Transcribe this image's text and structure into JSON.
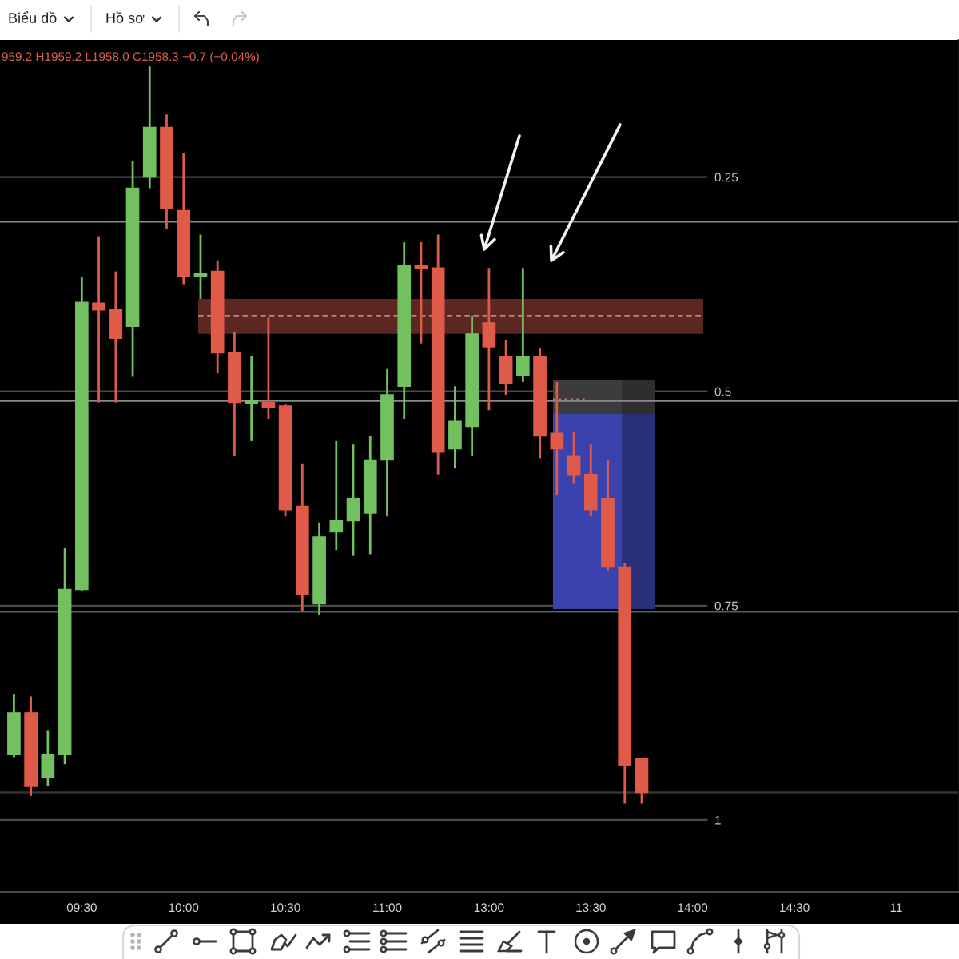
{
  "chart_data": {
    "type": "candlestick",
    "annotations": [
      "Biểu đồ",
      "Hồ sơ",
      "959.2 H1959.2 L1958.0 C1958.3 −0.7 (−0.04%)"
    ],
    "categories": [
      null,
      null,
      null,
      null,
      "09:30",
      null,
      null,
      null,
      null,
      null,
      "10:00",
      null,
      null,
      null,
      null,
      null,
      "10:30",
      null,
      null,
      null,
      null,
      null,
      "11:00",
      null,
      null,
      null,
      null,
      null,
      "13:00",
      null,
      null,
      null,
      null,
      null,
      "13:30",
      null,
      null,
      null,
      null,
      null,
      "14:00",
      null,
      null,
      null,
      null,
      null,
      "14:30",
      null,
      null,
      null,
      null,
      null,
      "11",
      null,
      null,
      null
    ],
    "ohlc": [
      [
        0.924,
        0.927,
        0.853,
        0.875
      ],
      [
        0.875,
        0.972,
        0.856,
        0.961
      ],
      [
        0.951,
        0.961,
        0.896,
        0.924
      ],
      [
        0.924,
        0.935,
        0.683,
        0.731
      ],
      [
        0.731,
        0.733,
        0.366,
        0.396
      ],
      [
        0.397,
        0.513,
        0.319,
        0.405
      ],
      [
        0.405,
        0.513,
        0.36,
        0.438
      ],
      [
        0.424,
        0.483,
        0.231,
        0.263
      ],
      [
        0.25,
        0.263,
        0.121,
        0.192
      ],
      [
        0.192,
        0.31,
        0.177,
        0.287
      ],
      [
        0.289,
        0.375,
        0.222,
        0.366
      ],
      [
        0.366,
        0.392,
        0.317,
        0.362
      ],
      [
        0.36,
        0.479,
        0.347,
        0.455
      ],
      [
        0.455,
        0.575,
        0.431,
        0.513
      ],
      [
        0.514,
        0.558,
        0.459,
        0.511
      ],
      [
        0.513,
        0.532,
        0.414,
        0.519
      ],
      [
        0.517,
        0.646,
        0.515,
        0.638
      ],
      [
        0.634,
        0.757,
        0.584,
        0.737
      ],
      [
        0.748,
        0.761,
        0.653,
        0.67
      ],
      [
        0.664,
        0.685,
        0.558,
        0.651
      ],
      [
        0.651,
        0.692,
        0.562,
        0.625
      ],
      [
        0.642,
        0.69,
        0.552,
        0.58
      ],
      [
        0.58,
        0.646,
        0.474,
        0.504
      ],
      [
        0.494,
        0.532,
        0.326,
        0.353
      ],
      [
        0.353,
        0.444,
        0.326,
        0.356
      ],
      [
        0.356,
        0.597,
        0.317,
        0.571
      ],
      [
        0.567,
        0.59,
        0.494,
        0.535
      ],
      [
        0.541,
        0.575,
        0.412,
        0.433
      ],
      [
        0.42,
        0.522,
        0.356,
        0.448
      ],
      [
        0.459,
        0.504,
        0.44,
        0.491
      ],
      [
        0.481,
        0.489,
        0.356,
        0.459
      ],
      [
        0.459,
        0.578,
        0.45,
        0.552
      ],
      [
        0.549,
        0.621,
        0.489,
        0.567
      ],
      [
        0.575,
        0.608,
        0.547,
        0.597
      ],
      [
        0.597,
        0.646,
        0.562,
        0.638
      ],
      [
        0.625,
        0.709,
        0.58,
        0.705
      ],
      [
        0.705,
        0.981,
        0.7,
        0.937
      ],
      [
        0.929,
        0.981,
        0.929,
        0.968
      ],
      null,
      null,
      null,
      null,
      null,
      null,
      null,
      null,
      null,
      null,
      null,
      null,
      null,
      null,
      null,
      null,
      null,
      null
    ],
    "colors": [
      "#72c05f",
      "#e05a4a",
      "#72c05f",
      "#72c05f",
      "#72c05f",
      "#e05a4a",
      "#e05a4a",
      "#72c05f",
      "#72c05f",
      "#e05a4a",
      "#e05a4a",
      "#72c05f",
      "#e05a4a",
      "#e05a4a",
      "#72c05f",
      "#e05a4a",
      "#e05a4a",
      "#e05a4a",
      "#72c05f",
      "#72c05f",
      "#72c05f",
      "#72c05f",
      "#72c05f",
      "#72c05f",
      "#e05a4a",
      "#e05a4a",
      "#72c05f",
      "#72c05f",
      "#e05a4a",
      "#e05a4a",
      "#72c05f",
      "#e05a4a",
      "#e05a4a",
      "#e05a4a",
      "#e05a4a",
      "#e05a4a",
      "#e05a4a",
      "#e05a4a",
      null,
      null,
      null,
      null,
      null,
      null,
      null,
      null,
      null,
      null,
      null,
      null,
      null,
      null,
      null,
      null,
      null,
      null
    ],
    "ylim": [
      1.084,
      0.09
    ],
    "yticks": [
      0.25,
      0.5,
      0.75,
      1
    ],
    "grid": "y",
    "bands": [
      {
        "axis": "y",
        "from": 0.392,
        "to": 0.433,
        "color": "#5c2621"
      }
    ],
    "ref_lines": [
      {
        "axis": "y",
        "value": 0.302,
        "color": "#8a8a8a"
      },
      {
        "axis": "y",
        "value": 0.412,
        "color": "#e3aaa0",
        "line_style": "dashed"
      },
      {
        "axis": "y",
        "value": 0.511,
        "color": "#8a8a8a"
      },
      {
        "axis": "y",
        "value": 0.757,
        "color": "#4f5f6e"
      },
      {
        "axis": "y",
        "value": 0.968,
        "color": "#333333"
      }
    ]
  }
}
